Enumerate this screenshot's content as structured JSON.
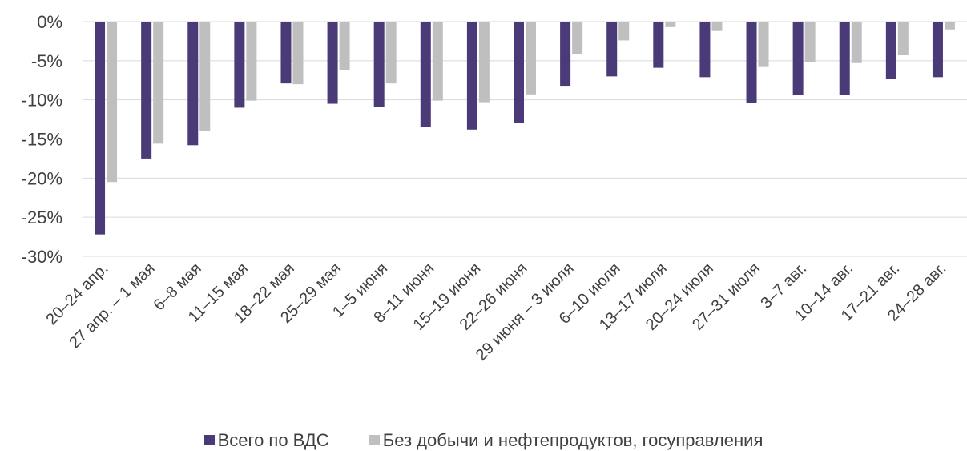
{
  "chart_data": {
    "type": "bar",
    "categories": [
      "20–24 апр.",
      "27 апр. – 1 мая",
      "6–8 мая",
      "11–15 мая",
      "18–22 мая",
      "25–29 мая",
      "1–5 июня",
      "8–11 июня",
      "15–19 июня",
      "22–26 июня",
      "29 июня – 3 июля",
      "6–10 июля",
      "13–17 июля",
      "20–24 июля",
      "27–31 июля",
      "3–7 авг.",
      "10–14 авг.",
      "17–21 авг.",
      "24–28 авг."
    ],
    "series": [
      {
        "name": "Всего по ВДС",
        "color": "#4B3A78",
        "values": [
          -27.2,
          -17.5,
          -15.8,
          -11.0,
          -7.9,
          -10.5,
          -10.9,
          -13.5,
          -13.8,
          -13.0,
          -8.2,
          -7.0,
          -5.9,
          -7.1,
          -10.4,
          -9.4,
          -9.4,
          -7.3,
          -7.1
        ]
      },
      {
        "name": "Без добычи и нефтепродуктов, госуправления",
        "color": "#BFBFBF",
        "values": [
          -20.5,
          -15.6,
          -14.0,
          -10.1,
          -8.0,
          -6.2,
          -7.9,
          -10.1,
          -10.3,
          -9.3,
          -4.2,
          -2.4,
          -0.7,
          -1.2,
          -5.8,
          -5.2,
          -5.3,
          -4.3,
          -1.0
        ]
      }
    ],
    "yticks": [
      "0%",
      "-5%",
      "-10%",
      "-15%",
      "-20%",
      "-25%",
      "-30%"
    ],
    "ylim": [
      -30,
      0
    ],
    "grid": true,
    "legend_position": "bottom"
  }
}
